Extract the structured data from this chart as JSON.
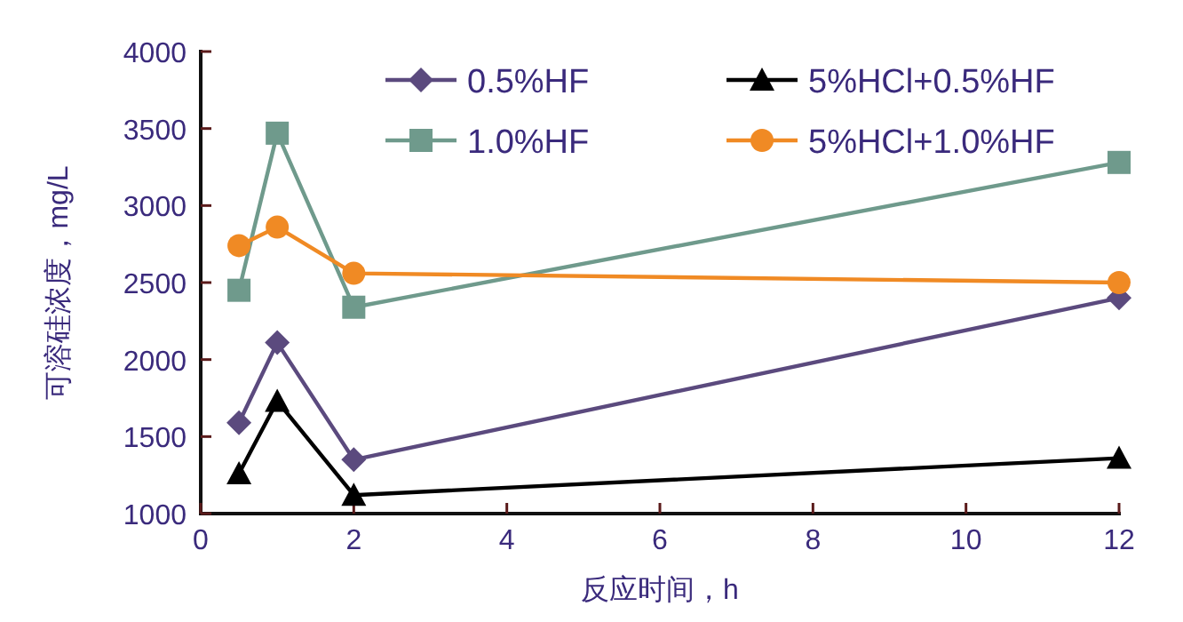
{
  "chart_data": {
    "type": "line",
    "xlabel": "反应时间，h",
    "ylabel": "可溶硅浓度，mg/L",
    "x": [
      0.5,
      1,
      2,
      12
    ],
    "xlim": [
      0,
      12
    ],
    "xticks": [
      0,
      2,
      4,
      6,
      8,
      10,
      12
    ],
    "ylim": [
      1000,
      4000
    ],
    "yticks": [
      1000,
      1500,
      2000,
      2500,
      3000,
      3500,
      4000
    ],
    "grid": false,
    "legend": "top",
    "line_style": "solid",
    "series": [
      {
        "name": "0.5%HF",
        "color": "#5b4a7e",
        "marker": "diamond",
        "values": [
          1590,
          2110,
          1350,
          2400
        ]
      },
      {
        "name": "5%HCl+0.5%HF",
        "color": "#000000",
        "marker": "triangle",
        "values": [
          1260,
          1730,
          1120,
          1360
        ]
      },
      {
        "name": "1.0%HF",
        "color": "#6f9a8c",
        "marker": "square",
        "values": [
          2450,
          3470,
          2340,
          3280
        ]
      },
      {
        "name": "5%HCl+1.0%HF",
        "color": "#f08a24",
        "marker": "circle",
        "values": [
          2740,
          2860,
          2560,
          2500
        ]
      }
    ]
  }
}
